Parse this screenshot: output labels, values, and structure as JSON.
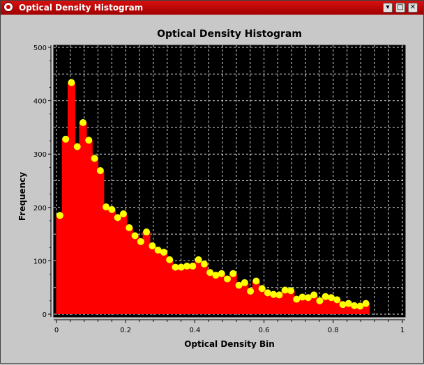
{
  "window": {
    "title": "Optical Density Histogram"
  },
  "chart_data": {
    "type": "bar",
    "title": "Optical Density Histogram",
    "xlabel": "Optical Density Bin",
    "ylabel": "Frequency",
    "xlim": [
      0,
      1
    ],
    "ylim": [
      0,
      500
    ],
    "grid": true,
    "bar_color": "#ff0000",
    "marker_color": "#ffff00",
    "plot_background": "#000000",
    "x_ticks": [
      "0",
      "0.2",
      "0.4",
      "0.6",
      "0.8",
      "1"
    ],
    "y_ticks": [
      "0",
      "100",
      "200",
      "300",
      "400",
      "500"
    ],
    "x": [
      0.0099,
      0.0266,
      0.0433,
      0.06,
      0.0767,
      0.0933,
      0.11,
      0.1267,
      0.1434,
      0.1601,
      0.1768,
      0.1935,
      0.2102,
      0.2269,
      0.2436,
      0.2602,
      0.2769,
      0.2936,
      0.3103,
      0.327,
      0.3437,
      0.3604,
      0.3771,
      0.3938,
      0.4105,
      0.4272,
      0.4438,
      0.4605,
      0.4772,
      0.4939,
      0.5106,
      0.5273,
      0.544,
      0.5607,
      0.5774,
      0.5941,
      0.6107,
      0.6274,
      0.6441,
      0.6608,
      0.6775,
      0.6942,
      0.7109,
      0.7276,
      0.7443,
      0.761,
      0.7776,
      0.7943,
      0.811,
      0.8277,
      0.8444,
      0.8611,
      0.8778,
      0.8945
    ],
    "values": [
      185,
      328,
      434,
      314,
      359,
      326,
      292,
      269,
      201,
      196,
      181,
      188,
      162,
      147,
      136,
      154,
      128,
      120,
      116,
      102,
      88,
      88,
      90,
      90,
      102,
      94,
      78,
      73,
      76,
      66,
      76,
      54,
      59,
      43,
      62,
      48,
      40,
      37,
      36,
      45,
      44,
      28,
      32,
      31,
      36,
      25,
      33,
      31,
      27,
      18,
      20,
      16,
      15,
      20
    ]
  }
}
